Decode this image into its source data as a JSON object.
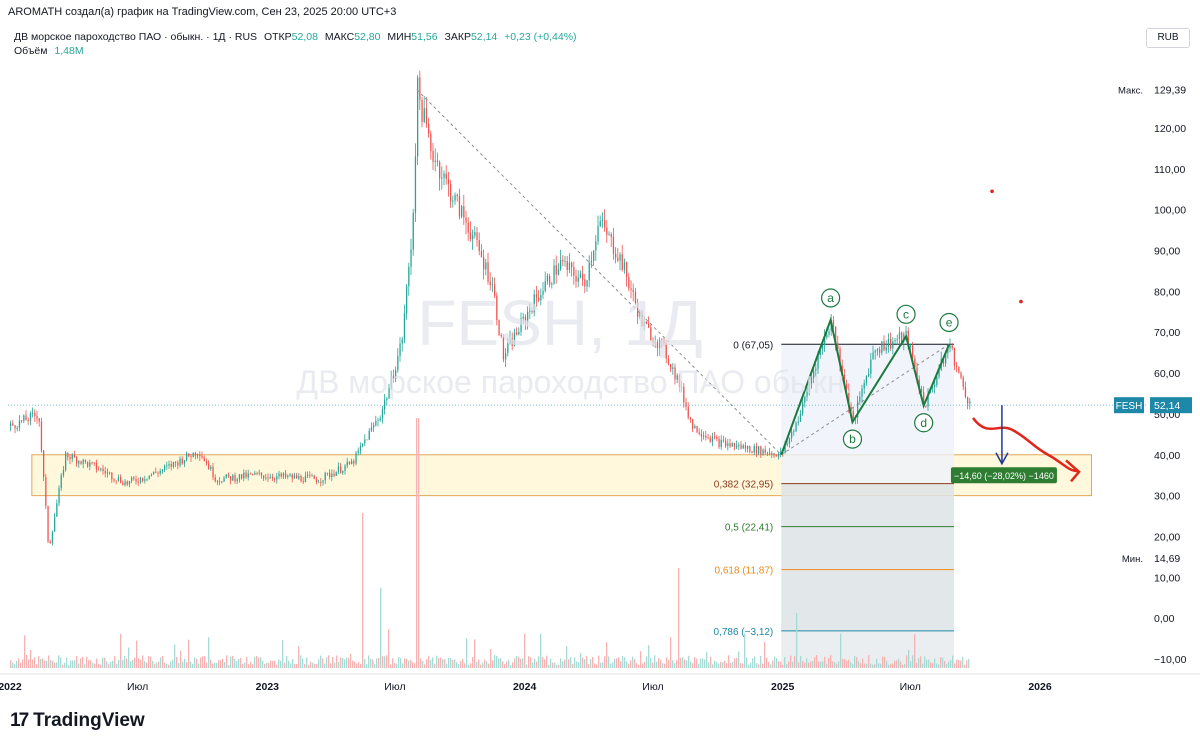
{
  "header": {
    "author_line": "AROMATH создал(а) график на TradingView.com, Сен 23, 2025 20:00 UTC+3"
  },
  "symbol_bar": {
    "name": "ДВ морское пароходство ПАО · обыкн. · 1Д · RUS",
    "open_label": "ОТКР",
    "open": "52,08",
    "high_label": "МАКС",
    "high": "52,80",
    "low_label": "МИН",
    "low": "51,56",
    "close_label": "ЗАКР",
    "close": "52,14",
    "change": "+0,23 (+0,44%)"
  },
  "volume": {
    "label": "Объём",
    "value": "1,48M"
  },
  "currency_button": "RUB",
  "watermark": {
    "ticker": "FESH, 1Д",
    "name": "ДВ морское пароходство ПАО обыкн."
  },
  "brand": {
    "logo": "17",
    "name": "TradingView"
  },
  "colors": {
    "up": "#26a69a",
    "down": "#ef5350",
    "wave": "#1b7a3e",
    "zone_fill": "#fff8dc",
    "zone_border": "#e0a85a",
    "fib_382": "#8a3b1f",
    "fib_5": "#2e7d32",
    "fib_618": "#ef8a17",
    "fib_786": "#1e88a8",
    "arrow_red": "#e0261b",
    "arrow_blue": "#1f3a93",
    "price_tag": "#1e88a8"
  },
  "chart_data": {
    "type": "candlestick",
    "symbol": "FESH",
    "timeframe": "1Д",
    "ylim": [
      -12,
      132
    ],
    "y_ticks": [
      "120,00",
      "110,00",
      "100,00",
      "90,00",
      "80,00",
      "70,00",
      "60,00",
      "50,00",
      "40,00",
      "30,00",
      "20,00",
      "10,00",
      "0,00",
      "−10,00"
    ],
    "x_ticks": [
      {
        "label": "2022",
        "date": "2022-01-01"
      },
      {
        "label": "Июл",
        "date": "2022-07-01"
      },
      {
        "label": "2023",
        "date": "2023-01-01"
      },
      {
        "label": "Июл",
        "date": "2023-07-01"
      },
      {
        "label": "2024",
        "date": "2024-01-01"
      },
      {
        "label": "Июл",
        "date": "2024-07-01"
      },
      {
        "label": "2025",
        "date": "2025-01-01"
      },
      {
        "label": "Июл",
        "date": "2025-07-01"
      },
      {
        "label": "2026",
        "date": "2026-01-01"
      }
    ],
    "price_path": [
      [
        "2022-01-01",
        47
      ],
      [
        "2022-02-10",
        50
      ],
      [
        "2022-02-24",
        17
      ],
      [
        "2022-03-20",
        40
      ],
      [
        "2022-05-01",
        37
      ],
      [
        "2022-06-15",
        33
      ],
      [
        "2022-08-01",
        36
      ],
      [
        "2022-09-25",
        41
      ],
      [
        "2022-10-20",
        34
      ],
      [
        "2022-12-15",
        35
      ],
      [
        "2023-03-15",
        34
      ],
      [
        "2023-05-01",
        38
      ],
      [
        "2023-05-20",
        44
      ],
      [
        "2023-06-10",
        50
      ],
      [
        "2023-06-25",
        58
      ],
      [
        "2023-07-10",
        68
      ],
      [
        "2023-07-25",
        95
      ],
      [
        "2023-08-01",
        129.39
      ],
      [
        "2023-08-20",
        115
      ],
      [
        "2023-09-15",
        105
      ],
      [
        "2023-10-15",
        95
      ],
      [
        "2023-11-15",
        82
      ],
      [
        "2023-12-01",
        64
      ],
      [
        "2024-01-15",
        78
      ],
      [
        "2024-02-20",
        87
      ],
      [
        "2024-03-25",
        82
      ],
      [
        "2024-04-15",
        97
      ],
      [
        "2024-05-15",
        88
      ],
      [
        "2024-06-15",
        72
      ],
      [
        "2024-07-15",
        66
      ],
      [
        "2024-08-05",
        58
      ],
      [
        "2024-08-25",
        47
      ],
      [
        "2024-10-01",
        43
      ],
      [
        "2024-12-30",
        40
      ],
      [
        "2025-01-25",
        50
      ],
      [
        "2025-02-15",
        62
      ],
      [
        "2025-03-10",
        73
      ],
      [
        "2025-04-10",
        48
      ],
      [
        "2025-05-10",
        66
      ],
      [
        "2025-06-25",
        69
      ],
      [
        "2025-07-20",
        52
      ],
      [
        "2025-08-25",
        67
      ],
      [
        "2025-09-10",
        58
      ],
      [
        "2025-09-23",
        52.14
      ]
    ],
    "extremes": {
      "max_label": "Макс.",
      "max": "129,39",
      "min_label": "Мин.",
      "min": "14,69"
    },
    "last_price_label": {
      "ticker": "FESH",
      "value": "52,14"
    },
    "wave_labels": [
      {
        "label": "a",
        "date": "2025-03-10",
        "value": 73
      },
      {
        "label": "b",
        "date": "2025-04-10",
        "value": 48
      },
      {
        "label": "c",
        "date": "2025-06-25",
        "value": 69
      },
      {
        "label": "d",
        "date": "2025-07-20",
        "value": 52
      },
      {
        "label": "e",
        "date": "2025-08-25",
        "value": 67
      }
    ],
    "support_zone": {
      "from": "2022-02-01",
      "to": "2026-03-15",
      "low": 30,
      "high": 40
    },
    "fib_levels": [
      {
        "text": "0 (67,05)",
        "value": 67.05
      },
      {
        "text": "0,382 (32,95)",
        "value": 32.95
      },
      {
        "text": "0,5 (22,41)",
        "value": 22.41
      },
      {
        "text": "0,618 (11,87)",
        "value": 11.87
      },
      {
        "text": "0,786 (−3,12)",
        "value": -3.12
      }
    ],
    "measure_label": "−14,60 (−28,02%) −1460",
    "red_dots": [
      {
        "date": "2025-10-25",
        "value": 104.5
      },
      {
        "date": "2025-12-05",
        "value": 77.5
      }
    ]
  }
}
